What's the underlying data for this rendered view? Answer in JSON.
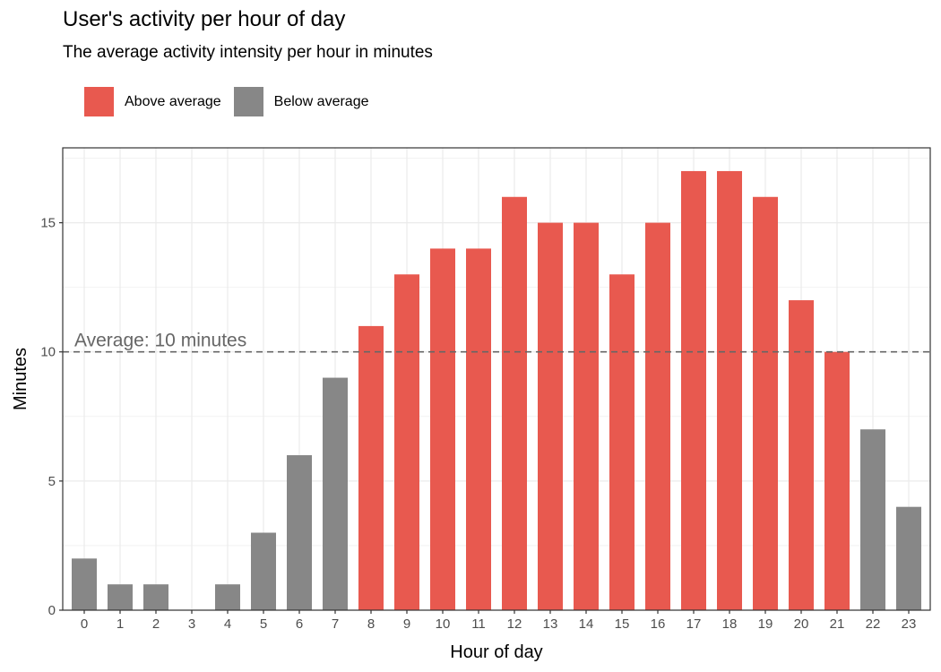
{
  "chart_data": {
    "type": "bar",
    "title": "User's activity per hour of day",
    "subtitle": "The average activity intensity per hour in minutes",
    "xlabel": "Hour of day",
    "ylabel": "Minutes",
    "categories": [
      "0",
      "1",
      "2",
      "3",
      "4",
      "5",
      "6",
      "7",
      "8",
      "9",
      "10",
      "11",
      "12",
      "13",
      "14",
      "15",
      "16",
      "17",
      "18",
      "19",
      "20",
      "21",
      "22",
      "23"
    ],
    "values": [
      2,
      1,
      1,
      0,
      1,
      3,
      6,
      9,
      11,
      13,
      14,
      14,
      16,
      15,
      15,
      13,
      15,
      17,
      17,
      16,
      12,
      10,
      7,
      4
    ],
    "groups": [
      "Below average",
      "Below average",
      "Below average",
      "Below average",
      "Below average",
      "Below average",
      "Below average",
      "Below average",
      "Above average",
      "Above average",
      "Above average",
      "Above average",
      "Above average",
      "Above average",
      "Above average",
      "Above average",
      "Above average",
      "Above average",
      "Above average",
      "Above average",
      "Above average",
      "Above average",
      "Below average",
      "Below average"
    ],
    "ylim": [
      0,
      17.9
    ],
    "yticks": [
      0,
      5,
      10,
      15
    ],
    "grid": true,
    "legend_position": "top-left",
    "legend": [
      {
        "name": "Above average",
        "color": "#E8594F"
      },
      {
        "name": "Below average",
        "color": "#878787"
      }
    ],
    "reference_line": {
      "value": 10,
      "label": "Average: 10 minutes",
      "style": "dashed",
      "color": "#666666"
    }
  }
}
